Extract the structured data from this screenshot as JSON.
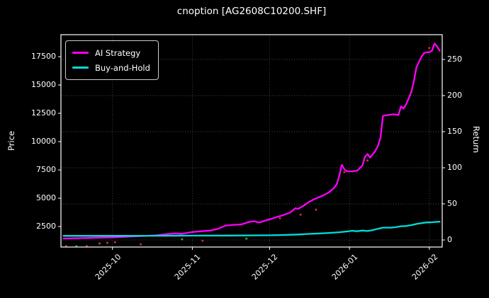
{
  "chart_data": {
    "type": "line",
    "title": "cnoption [AG2608C10200.SHF]",
    "frame": {
      "l": 86,
      "t": 49,
      "r": 624,
      "b": 349
    },
    "colors": {
      "background": "#000000",
      "spine": "#ffffff",
      "grid": "#4d4d4d",
      "text": "#ffffff",
      "ai_strategy": "#ff00ff",
      "buy_and_hold": "#00dcdc",
      "buy_marker": "#2eaa2e",
      "sell_marker": "#cc3333"
    },
    "x": {
      "min": "2025-09-11",
      "max": "2026-02-06",
      "ticks": [
        {
          "date": "2025-10-01",
          "label": "2025-10"
        },
        {
          "date": "2025-11-01",
          "label": "2025-11"
        },
        {
          "date": "2025-12-01",
          "label": "2025-12"
        },
        {
          "date": "2026-01-01",
          "label": "2026-01"
        },
        {
          "date": "2026-02-01",
          "label": "2026-02"
        }
      ]
    },
    "left": {
      "label": "Price",
      "min": 690,
      "max": 19440,
      "ticks": [
        {
          "v": 2500,
          "label": "2500"
        },
        {
          "v": 5000,
          "label": "5000"
        },
        {
          "v": 7500,
          "label": "7500"
        },
        {
          "v": 10000,
          "label": "10000"
        },
        {
          "v": 12500,
          "label": "12500"
        },
        {
          "v": 15000,
          "label": "15000"
        },
        {
          "v": 17500,
          "label": "17500"
        }
      ]
    },
    "right": {
      "label": "Return",
      "min": -9.8,
      "max": 284.3,
      "ticks": [
        {
          "v": 0,
          "label": "0"
        },
        {
          "v": 50,
          "label": "50"
        },
        {
          "v": 100,
          "label": "100"
        },
        {
          "v": 150,
          "label": "150"
        },
        {
          "v": 200,
          "label": "200"
        },
        {
          "v": 250,
          "label": "250"
        }
      ]
    },
    "series": [
      {
        "name": "AI Strategy",
        "axis": "right",
        "color_key": "ai_strategy",
        "points": [
          [
            "2025-09-12",
            2
          ],
          [
            "2025-09-18",
            2.5
          ],
          [
            "2025-09-24",
            3
          ],
          [
            "2025-10-01",
            3.5
          ],
          [
            "2025-10-07",
            4.5
          ],
          [
            "2025-10-13",
            5.5
          ],
          [
            "2025-10-18",
            6.5
          ],
          [
            "2025-10-22",
            8
          ],
          [
            "2025-10-25",
            9
          ],
          [
            "2025-10-28",
            8.5
          ],
          [
            "2025-11-01",
            11
          ],
          [
            "2025-11-04",
            12
          ],
          [
            "2025-11-08",
            13
          ],
          [
            "2025-11-11",
            15.5
          ],
          [
            "2025-11-14",
            20
          ],
          [
            "2025-11-17",
            21
          ],
          [
            "2025-11-20",
            21.5
          ],
          [
            "2025-11-23",
            25
          ],
          [
            "2025-11-25",
            26
          ],
          [
            "2025-11-27",
            24
          ],
          [
            "2025-11-29",
            26.5
          ],
          [
            "2025-12-01",
            28.5
          ],
          [
            "2025-12-04",
            32
          ],
          [
            "2025-12-06",
            34
          ],
          [
            "2025-12-09",
            38
          ],
          [
            "2025-12-11",
            44
          ],
          [
            "2025-12-12",
            43
          ],
          [
            "2025-12-14",
            47
          ],
          [
            "2025-12-16",
            52
          ],
          [
            "2025-12-18",
            56
          ],
          [
            "2025-12-20",
            59
          ],
          [
            "2025-12-22",
            62
          ],
          [
            "2025-12-24",
            66
          ],
          [
            "2025-12-26",
            72
          ],
          [
            "2025-12-27",
            77
          ],
          [
            "2025-12-28",
            88
          ],
          [
            "2025-12-29",
            104
          ],
          [
            "2025-12-30",
            98
          ],
          [
            "2025-12-31",
            95
          ],
          [
            "2026-01-02",
            95
          ],
          [
            "2026-01-04",
            96
          ],
          [
            "2026-01-06",
            103
          ],
          [
            "2026-01-07",
            115
          ],
          [
            "2026-01-08",
            119
          ],
          [
            "2026-01-09",
            114
          ],
          [
            "2026-01-11",
            123
          ],
          [
            "2026-01-12",
            130
          ],
          [
            "2026-01-13",
            141
          ],
          [
            "2026-01-14",
            172
          ],
          [
            "2026-01-16",
            173
          ],
          [
            "2026-01-18",
            174
          ],
          [
            "2026-01-20",
            173
          ],
          [
            "2026-01-21",
            185
          ],
          [
            "2026-01-22",
            182
          ],
          [
            "2026-01-23",
            188
          ],
          [
            "2026-01-24",
            196
          ],
          [
            "2026-01-25",
            205
          ],
          [
            "2026-01-26",
            220
          ],
          [
            "2026-01-27",
            239
          ],
          [
            "2026-01-28",
            247
          ],
          [
            "2026-01-29",
            254
          ],
          [
            "2026-01-30",
            259
          ],
          [
            "2026-01-31",
            260
          ],
          [
            "2026-02-01",
            260
          ],
          [
            "2026-02-02",
            262
          ],
          [
            "2026-02-03",
            272
          ],
          [
            "2026-02-04",
            268
          ],
          [
            "2026-02-05",
            262
          ]
        ]
      },
      {
        "name": "Buy-and-Hold",
        "axis": "left",
        "color_key": "buy_and_hold",
        "points": [
          [
            "2025-09-12",
            1680
          ],
          [
            "2025-10-01",
            1680
          ],
          [
            "2025-10-15",
            1685
          ],
          [
            "2025-11-01",
            1695
          ],
          [
            "2025-11-15",
            1705
          ],
          [
            "2025-12-01",
            1730
          ],
          [
            "2025-12-08",
            1765
          ],
          [
            "2025-12-12",
            1795
          ],
          [
            "2025-12-16",
            1845
          ],
          [
            "2025-12-20",
            1885
          ],
          [
            "2025-12-24",
            1935
          ],
          [
            "2025-12-28",
            1995
          ],
          [
            "2025-12-31",
            2065
          ],
          [
            "2026-01-02",
            2125
          ],
          [
            "2026-01-04",
            2085
          ],
          [
            "2026-01-06",
            2145
          ],
          [
            "2026-01-08",
            2105
          ],
          [
            "2026-01-10",
            2185
          ],
          [
            "2026-01-12",
            2305
          ],
          [
            "2026-01-14",
            2405
          ],
          [
            "2026-01-17",
            2405
          ],
          [
            "2026-01-19",
            2445
          ],
          [
            "2026-01-21",
            2525
          ],
          [
            "2026-01-23",
            2545
          ],
          [
            "2026-01-25",
            2625
          ],
          [
            "2026-01-27",
            2725
          ],
          [
            "2026-01-29",
            2805
          ],
          [
            "2026-01-31",
            2865
          ],
          [
            "2026-02-02",
            2875
          ],
          [
            "2026-02-03",
            2905
          ],
          [
            "2026-02-05",
            2925
          ]
        ]
      }
    ],
    "markers": [
      {
        "date": "2025-09-13",
        "value": -8.5,
        "type": "sell"
      },
      {
        "date": "2025-09-17",
        "value": -8.8,
        "type": "buy"
      },
      {
        "date": "2025-09-21",
        "value": -8.6,
        "type": "sell"
      },
      {
        "date": "2025-09-26",
        "value": -4.9,
        "type": "sell"
      },
      {
        "date": "2025-09-29",
        "value": -3.9,
        "type": "sell"
      },
      {
        "date": "2025-10-02",
        "value": -2.9,
        "type": "sell"
      },
      {
        "date": "2025-10-12",
        "value": -6,
        "type": "sell"
      },
      {
        "date": "2025-10-28",
        "value": 1,
        "type": "buy"
      },
      {
        "date": "2025-11-05",
        "value": -1,
        "type": "sell"
      },
      {
        "date": "2025-11-22",
        "value": 2,
        "type": "buy"
      },
      {
        "date": "2025-12-05",
        "value": 30,
        "type": "sell"
      },
      {
        "date": "2025-12-13",
        "value": 35,
        "type": "sell"
      },
      {
        "date": "2025-12-19",
        "value": 42,
        "type": "sell"
      },
      {
        "date": "2025-12-30",
        "value": 94,
        "type": "sell"
      },
      {
        "date": "2026-01-08",
        "value": 110,
        "type": "sell"
      },
      {
        "date": "2026-01-25",
        "value": 205,
        "type": "sell"
      },
      {
        "date": "2026-02-01",
        "value": 266,
        "type": "sell"
      }
    ],
    "legend_position": "upper-left",
    "grid": "dotted"
  }
}
